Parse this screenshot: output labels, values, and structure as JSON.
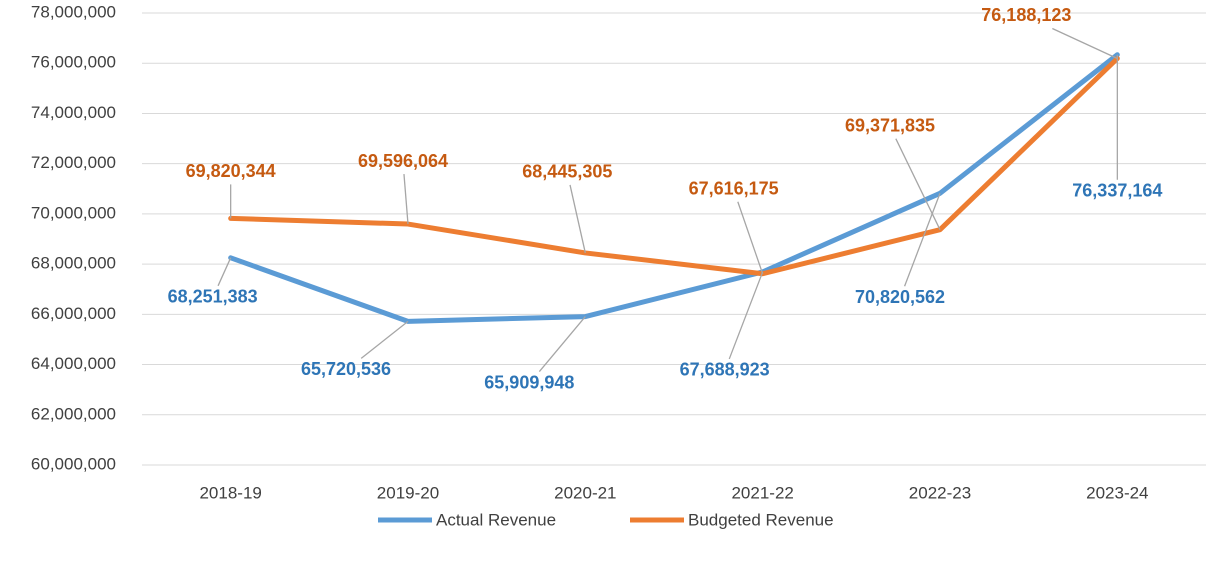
{
  "chart_data": {
    "type": "line",
    "categories": [
      "2018-19",
      "2019-20",
      "2020-21",
      "2021-22",
      "2022-23",
      "2023-24"
    ],
    "series": [
      {
        "name": "Actual Revenue",
        "color": "#5b9bd5",
        "label_color": "#2e75b6",
        "values": [
          68251383,
          65720536,
          65909948,
          67688923,
          70820562,
          76337164
        ],
        "value_labels": [
          "68,251,383",
          "65,720,536",
          "65,909,948",
          "67,688,923",
          "70,820,562",
          "76,337,164"
        ]
      },
      {
        "name": "Budgeted Revenue",
        "color": "#ed7d31",
        "label_color": "#c55a11",
        "values": [
          69820344,
          69596064,
          68445305,
          67616175,
          69371835,
          76188123
        ],
        "value_labels": [
          "69,820,344",
          "69,596,064",
          "68,445,305",
          "67,616,175",
          "69,371,835",
          "76,188,123"
        ]
      }
    ],
    "ylim": [
      60000000,
      78000000
    ],
    "yticks": [
      {
        "value": 60000000,
        "label": "60,000,000"
      },
      {
        "value": 62000000,
        "label": "62,000,000"
      },
      {
        "value": 64000000,
        "label": "64,000,000"
      },
      {
        "value": 66000000,
        "label": "66,000,000"
      },
      {
        "value": 68000000,
        "label": "68,000,000"
      },
      {
        "value": 70000000,
        "label": "70,000,000"
      },
      {
        "value": 72000000,
        "label": "72,000,000"
      },
      {
        "value": 74000000,
        "label": "74,000,000"
      },
      {
        "value": 76000000,
        "label": "76,000,000"
      },
      {
        "value": 78000000,
        "label": "78,000,000"
      }
    ],
    "grid": true,
    "legend": "bottom"
  }
}
